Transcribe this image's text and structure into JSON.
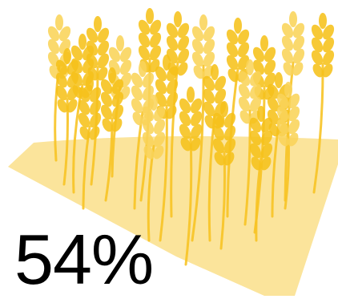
{
  "infographic": {
    "percentage_label": "54%",
    "percentage_value": 54,
    "illustration": "wheat-field-icon",
    "colors": {
      "field": "#FBE49B",
      "stalk": "#F7C325",
      "grain": "#F6C21B",
      "grain_highlight": "#FAD45A",
      "text": "#000000"
    }
  }
}
